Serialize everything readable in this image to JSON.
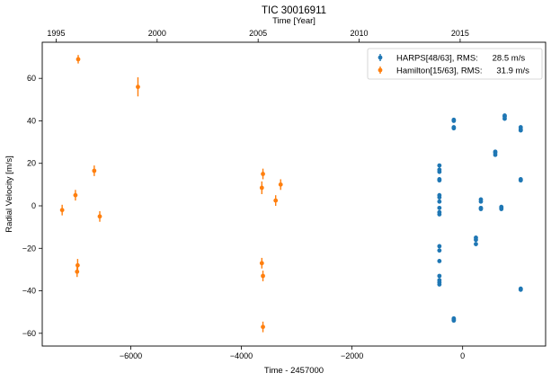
{
  "chart_data": {
    "type": "scatter",
    "title": "TIC 30016911",
    "xlabel": "Time - 2457000",
    "ylabel": "Radial Velocity [m/s]",
    "top_xlabel": "Time [Year]",
    "xlim": [
      -7600,
      1500
    ],
    "ylim": [
      -66,
      77
    ],
    "xticks": [
      -6000,
      -4000,
      -2000,
      0
    ],
    "xtick_labels": [
      "−6000",
      "−4000",
      "−2000",
      "0"
    ],
    "yticks": [
      -60,
      -40,
      -20,
      0,
      20,
      40,
      60
    ],
    "ytick_labels": [
      "−60",
      "−40",
      "−20",
      "0",
      "20",
      "40",
      "60"
    ],
    "top_ticks": [
      {
        "year": 1995,
        "time": -7349,
        "label": "1995"
      },
      {
        "year": 2000,
        "time": -5523,
        "label": "2000"
      },
      {
        "year": 2005,
        "time": -3697,
        "label": "2005"
      },
      {
        "year": 2010,
        "time": -1871,
        "label": "2010"
      },
      {
        "year": 2015,
        "time": -45,
        "label": "2015"
      }
    ],
    "grid": false,
    "legend_position": "top-right",
    "series": [
      {
        "name": "HARPS[48/63], RMS:      28.5 m/s",
        "color": "#1f77b4",
        "points": [
          [
            -420,
            19,
            0.8
          ],
          [
            -420,
            17,
            0.8
          ],
          [
            -420,
            16,
            0.8
          ],
          [
            -420,
            12.5,
            0.8
          ],
          [
            -420,
            12,
            0.8
          ],
          [
            -420,
            5,
            0.8
          ],
          [
            -420,
            4,
            0.8
          ],
          [
            -420,
            2,
            0.8
          ],
          [
            -420,
            -1,
            0.8
          ],
          [
            -420,
            -3,
            0.8
          ],
          [
            -420,
            -4,
            0.8
          ],
          [
            -420,
            -19,
            0.8
          ],
          [
            -420,
            -21,
            0.8
          ],
          [
            -420,
            -26,
            0.8
          ],
          [
            -420,
            -33,
            0.8
          ],
          [
            -420,
            -35,
            0.8
          ],
          [
            -420,
            -36,
            0.8
          ],
          [
            -420,
            -37,
            0.8
          ],
          [
            -160,
            40.5,
            0.8
          ],
          [
            -160,
            40,
            0.8
          ],
          [
            -160,
            37,
            0.8
          ],
          [
            -160,
            36.5,
            0.8
          ],
          [
            -160,
            -53,
            0.8
          ],
          [
            -160,
            -53.5,
            0.8
          ],
          [
            -160,
            -54,
            0.8
          ],
          [
            240,
            -15,
            0.8
          ],
          [
            240,
            -16,
            0.8
          ],
          [
            240,
            -18,
            0.8
          ],
          [
            330,
            3,
            0.8
          ],
          [
            330,
            2,
            0.8
          ],
          [
            330,
            -1,
            0.8
          ],
          [
            330,
            -1.5,
            0.8
          ],
          [
            590,
            25.5,
            0.8
          ],
          [
            590,
            25,
            0.8
          ],
          [
            590,
            24,
            0.8
          ],
          [
            700,
            -0.5,
            0.8
          ],
          [
            700,
            -1,
            0.8
          ],
          [
            700,
            -1.5,
            0.8
          ],
          [
            760,
            42.5,
            0.8
          ],
          [
            760,
            42,
            0.8
          ],
          [
            760,
            41,
            0.8
          ],
          [
            1050,
            37,
            0.8
          ],
          [
            1050,
            36,
            0.8
          ],
          [
            1050,
            35.5,
            0.8
          ],
          [
            1050,
            12.5,
            0.8
          ],
          [
            1050,
            12,
            0.8
          ],
          [
            1050,
            -39,
            0.8
          ],
          [
            1050,
            -39.5,
            0.8
          ]
        ]
      },
      {
        "name": "Hamilton[15/63], RMS:      31.9 m/s",
        "color": "#ff7f0e",
        "points": [
          [
            -7240,
            -2,
            2.5
          ],
          [
            -7000,
            5,
            2.5
          ],
          [
            -6950,
            69,
            2
          ],
          [
            -6960,
            -28,
            3
          ],
          [
            -6970,
            -31,
            2.5
          ],
          [
            -6660,
            16.5,
            2.5
          ],
          [
            -6560,
            -5,
            2.5
          ],
          [
            -5870,
            56,
            4.5
          ],
          [
            -3630,
            8.5,
            3
          ],
          [
            -3610,
            15,
            2.5
          ],
          [
            -3630,
            -27,
            2.5
          ],
          [
            -3610,
            -33,
            2.5
          ],
          [
            -3610,
            -57,
            2.5
          ],
          [
            -3380,
            2.5,
            2.5
          ],
          [
            -3290,
            10,
            2.5
          ]
        ]
      }
    ]
  }
}
